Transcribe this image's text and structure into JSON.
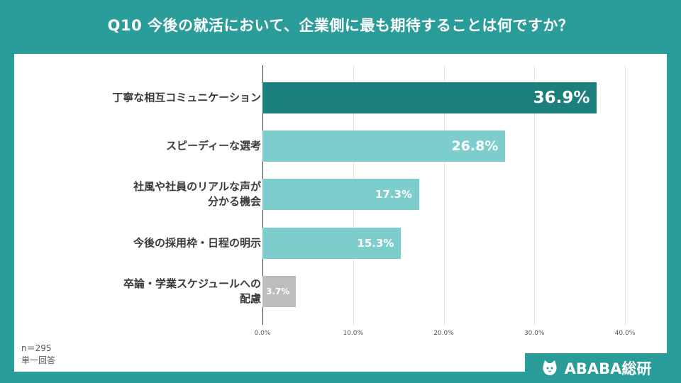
{
  "header": {
    "title": "Q10 今後の就活において、企業側に最も期待することは何ですか？"
  },
  "footnote": {
    "sample_size": "n＝295",
    "answer_type": "単一回答"
  },
  "brand": {
    "name": "ABABA総研",
    "icon": "cat-mascot-icon"
  },
  "colors": {
    "background": "#2a9c99",
    "bar_top": "#1b7f7c",
    "bar_mid": "#7ccdcb",
    "bar_low": "#bdbdbd"
  },
  "chart_data": {
    "type": "bar",
    "orientation": "horizontal",
    "categories": [
      [
        "丁寧な相互コミュニケーション"
      ],
      [
        "スピーディーな選考"
      ],
      [
        "社風や社員のリアルな声が",
        "分かる機会"
      ],
      [
        "今後の採用枠・日程の明示"
      ],
      [
        "卒論・学業スケジュールへの",
        "配慮"
      ]
    ],
    "values": [
      36.9,
      26.8,
      17.3,
      15.3,
      3.7
    ],
    "value_labels": [
      "36.9%",
      "26.8%",
      "17.3%",
      "15.3%",
      "3.7%"
    ],
    "xlim": [
      0,
      40
    ],
    "ticks": [
      "0.0%",
      "10.0%",
      "20.0%",
      "30.0%",
      "40.0%"
    ],
    "grid": true,
    "title": "",
    "xlabel": "",
    "ylabel": ""
  }
}
